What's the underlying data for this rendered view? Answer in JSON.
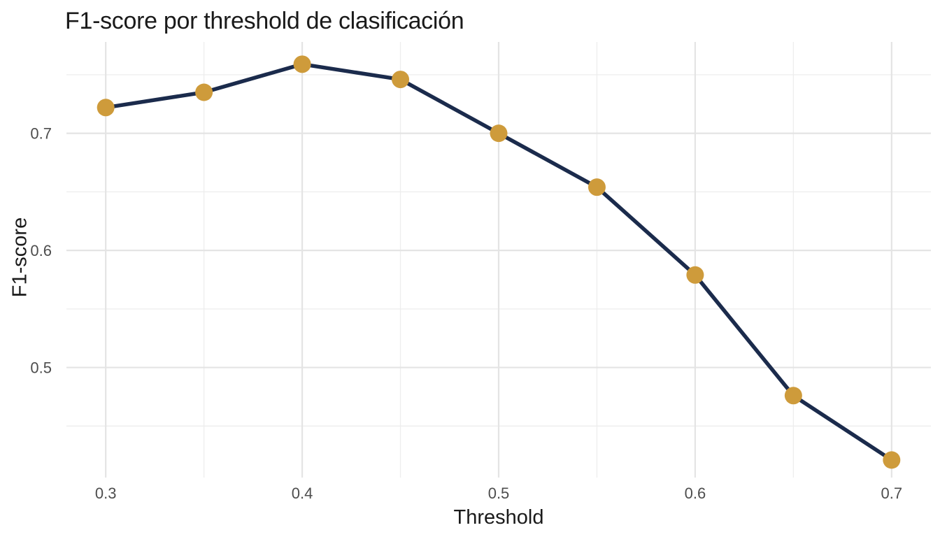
{
  "chart_data": {
    "type": "line",
    "title": "F1-score por threshold de clasificación",
    "xlabel": "Threshold",
    "ylabel": "F1-score",
    "x": [
      0.3,
      0.35,
      0.4,
      0.45,
      0.5,
      0.55,
      0.6,
      0.65,
      0.7
    ],
    "values": [
      0.722,
      0.735,
      0.759,
      0.746,
      0.7,
      0.654,
      0.579,
      0.476,
      0.421
    ],
    "series_name": "F1-score",
    "x_tick_labels": [
      "0.3",
      "0.4",
      "0.5",
      "0.6",
      "0.7"
    ],
    "x_tick_values": [
      0.3,
      0.4,
      0.5,
      0.6,
      0.7
    ],
    "x_minor_ticks": [
      0.35,
      0.45,
      0.55,
      0.65
    ],
    "y_tick_labels": [
      "0.5",
      "0.6",
      "0.7"
    ],
    "y_tick_values": [
      0.5,
      0.6,
      0.7
    ],
    "y_minor_ticks": [
      0.45,
      0.55,
      0.65,
      0.75
    ],
    "xlim": [
      0.28,
      0.72
    ],
    "ylim": [
      0.406,
      0.778
    ],
    "grid": "major+minor",
    "legend": "none",
    "colors": {
      "line": "#1B2B4C",
      "point": "#CE9B3B",
      "grid_major": "#E4E4E4",
      "grid_minor": "#EDEDED",
      "tick_label": "#4D4D4D",
      "title_text": "#1A1A1A",
      "background": "#FFFFFF"
    }
  }
}
